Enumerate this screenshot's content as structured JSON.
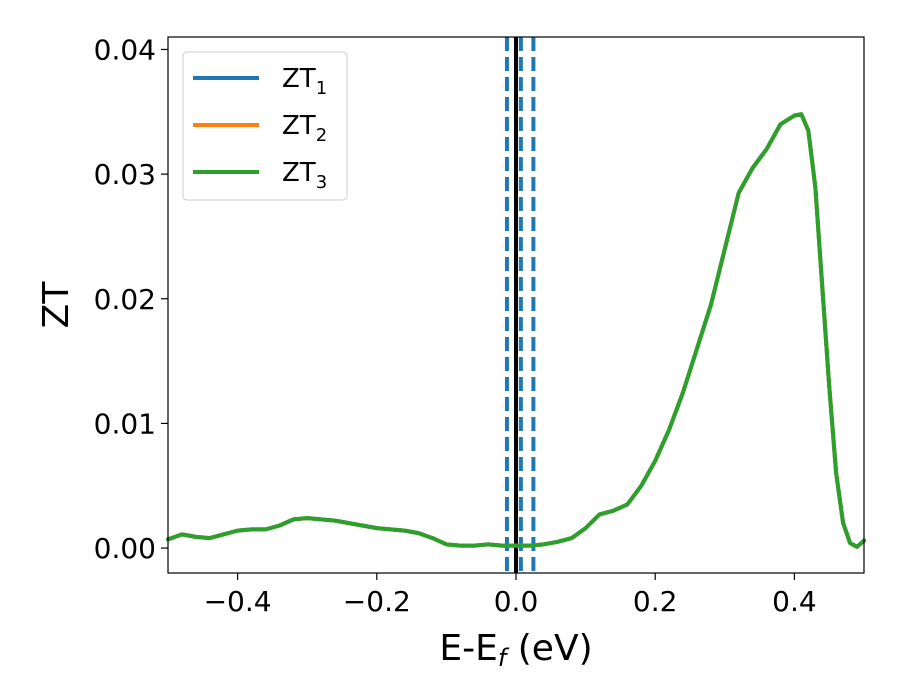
{
  "chart_data": {
    "type": "line",
    "xlabel": "E-E",
    "xlabel_sub": "f",
    "xlabel_unit": " (eV)",
    "ylabel": "ZT",
    "xlim": [
      -0.5,
      0.5
    ],
    "ylim": [
      -0.002,
      0.041
    ],
    "xticks": [
      -0.4,
      -0.2,
      0.0,
      0.2,
      0.4
    ],
    "xtick_labels": [
      "−0.4",
      "−0.2",
      "0.0",
      "0.2",
      "0.4"
    ],
    "yticks": [
      0.0,
      0.01,
      0.02,
      0.03,
      0.04
    ],
    "ytick_labels": [
      "0.00",
      "0.01",
      "0.02",
      "0.03",
      "0.04"
    ],
    "grid": false,
    "legend_position": "top-left",
    "x": [
      -0.5,
      -0.48,
      -0.46,
      -0.44,
      -0.42,
      -0.4,
      -0.38,
      -0.36,
      -0.34,
      -0.32,
      -0.3,
      -0.28,
      -0.26,
      -0.24,
      -0.22,
      -0.2,
      -0.18,
      -0.16,
      -0.14,
      -0.12,
      -0.1,
      -0.08,
      -0.06,
      -0.04,
      -0.02,
      0.0,
      0.02,
      0.04,
      0.06,
      0.08,
      0.1,
      0.12,
      0.14,
      0.16,
      0.18,
      0.2,
      0.22,
      0.24,
      0.26,
      0.28,
      0.3,
      0.32,
      0.34,
      0.36,
      0.38,
      0.4,
      0.41,
      0.42,
      0.43,
      0.44,
      0.45,
      0.46,
      0.47,
      0.48,
      0.49,
      0.5
    ],
    "series": [
      {
        "name": "ZT",
        "sub": "1",
        "color": "#1f77b4",
        "values": [
          0.0007,
          0.0011,
          0.0009,
          0.0008,
          0.0011,
          0.0014,
          0.0015,
          0.0015,
          0.0018,
          0.0023,
          0.0024,
          0.0023,
          0.0022,
          0.002,
          0.0018,
          0.0016,
          0.0015,
          0.0014,
          0.0012,
          0.0008,
          0.0003,
          0.0002,
          0.0002,
          0.0003,
          0.0002,
          0.0002,
          0.0002,
          0.0003,
          0.0005,
          0.0008,
          0.0016,
          0.0027,
          0.003,
          0.0035,
          0.005,
          0.007,
          0.0095,
          0.0125,
          0.016,
          0.0195,
          0.024,
          0.0285,
          0.0305,
          0.032,
          0.034,
          0.0347,
          0.0348,
          0.0335,
          0.029,
          0.021,
          0.013,
          0.006,
          0.002,
          0.0004,
          0.0001,
          0.0006
        ]
      },
      {
        "name": "ZT",
        "sub": "2",
        "color": "#ff7f0e",
        "values": [
          0.0007,
          0.0011,
          0.0009,
          0.0008,
          0.0011,
          0.0014,
          0.0015,
          0.0015,
          0.0018,
          0.0023,
          0.0024,
          0.0023,
          0.0022,
          0.002,
          0.0018,
          0.0016,
          0.0015,
          0.0014,
          0.0012,
          0.0008,
          0.0003,
          0.0002,
          0.0002,
          0.0003,
          0.0002,
          0.0002,
          0.0002,
          0.0003,
          0.0005,
          0.0008,
          0.0016,
          0.0027,
          0.003,
          0.0035,
          0.005,
          0.007,
          0.0095,
          0.0125,
          0.016,
          0.0195,
          0.024,
          0.0285,
          0.0305,
          0.032,
          0.034,
          0.0347,
          0.0348,
          0.0335,
          0.029,
          0.021,
          0.013,
          0.006,
          0.002,
          0.0004,
          0.0001,
          0.0006
        ]
      },
      {
        "name": "ZT",
        "sub": "3",
        "color": "#2ca02c",
        "values": [
          0.0007,
          0.0011,
          0.0009,
          0.0008,
          0.0011,
          0.0014,
          0.0015,
          0.0015,
          0.0018,
          0.0023,
          0.0024,
          0.0023,
          0.0022,
          0.002,
          0.0018,
          0.0016,
          0.0015,
          0.0014,
          0.0012,
          0.0008,
          0.0003,
          0.0002,
          0.0002,
          0.0003,
          0.0002,
          0.0002,
          0.0002,
          0.0003,
          0.0005,
          0.0008,
          0.0016,
          0.0027,
          0.003,
          0.0035,
          0.005,
          0.007,
          0.0095,
          0.0125,
          0.016,
          0.0195,
          0.024,
          0.0285,
          0.0305,
          0.032,
          0.034,
          0.0347,
          0.0348,
          0.0335,
          0.029,
          0.021,
          0.013,
          0.006,
          0.002,
          0.0004,
          0.0001,
          0.0006
        ]
      }
    ],
    "vlines": [
      {
        "x": 0.0,
        "color": "#000000",
        "style": "solid"
      },
      {
        "x": -0.013,
        "color": "#1f77b4",
        "style": "dashed"
      },
      {
        "x": 0.007,
        "color": "#1f77b4",
        "style": "dashed"
      },
      {
        "x": 0.025,
        "color": "#1f77b4",
        "style": "dashed"
      }
    ]
  }
}
